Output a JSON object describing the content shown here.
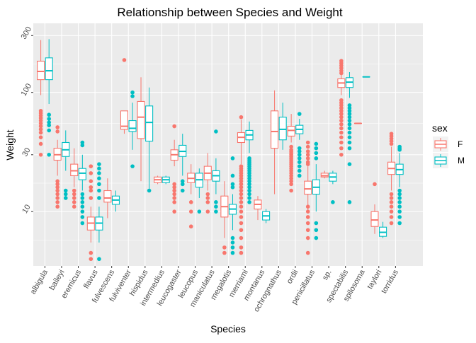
{
  "chart_data": {
    "type": "boxplot",
    "title": "Relationship between Species and Weight",
    "xlabel": "Species",
    "ylabel": "Weight",
    "y_scale": "log10",
    "ylim": [
      3.5,
      380
    ],
    "y_ticks": [
      10,
      30,
      100,
      300
    ],
    "y_tick_labels": [
      "10",
      "30",
      "100",
      "300"
    ],
    "grid": true,
    "legend": {
      "title": "sex",
      "placement": "right",
      "entries": [
        {
          "label": "F",
          "color": "#F8766D"
        },
        {
          "label": "M",
          "color": "#00BFC4"
        }
      ]
    },
    "categories": [
      "albigula",
      "baileyi",
      "eremicus",
      "flavus",
      "fulvescens",
      "fulviventer",
      "hispidus",
      "intermedius",
      "leucogaster",
      "leucopus",
      "maniculatus",
      "megalotis",
      "merriami",
      "montanus",
      "ochrognathus",
      "ordii",
      "penicillatus",
      "sp.",
      "spectabilis",
      "spilosoma",
      "taylori",
      "torridus"
    ],
    "series": [
      {
        "name": "F",
        "color": "#F8766D",
        "boxes": [
          {
            "species": "albigula",
            "min": 95,
            "q1": 128,
            "median": 150,
            "q3": 183,
            "max": 275,
            "outliers": [
              30,
              37,
              42,
              46,
              49,
              52,
              55,
              58,
              61,
              64,
              67,
              70
            ]
          },
          {
            "species": "baileyi",
            "min": 20,
            "q1": 27,
            "median": 30,
            "q3": 34,
            "max": 40,
            "outliers": [
              11,
              12,
              13,
              14,
              15,
              16,
              17,
              18,
              47,
              51
            ]
          },
          {
            "species": "eremicus",
            "min": 16,
            "q1": 20,
            "median": 22,
            "q3": 25,
            "max": 34,
            "outliers": [
              11,
              12,
              13,
              14,
              15
            ]
          },
          {
            "species": "flavus",
            "min": 5.5,
            "q1": 7,
            "median": 8,
            "q3": 9,
            "max": 11,
            "outliers": [
              4,
              4.5,
              13,
              15,
              16,
              18,
              21,
              24
            ]
          },
          {
            "species": "fulvescens",
            "min": 8.8,
            "q1": 12,
            "median": 13,
            "q3": 15,
            "max": 19,
            "outliers": []
          },
          {
            "species": "fulviventer",
            "min": 45,
            "q1": 49,
            "median": 52,
            "q3": 70,
            "max": 70,
            "outliers": [
              187
            ]
          },
          {
            "species": "hispidus",
            "min": 18,
            "q1": 41,
            "median": 62,
            "q3": 84,
            "max": 134,
            "outliers": []
          },
          {
            "species": "intermedius",
            "min": 17,
            "q1": 17.5,
            "median": 18.5,
            "q3": 19.5,
            "max": 20,
            "outliers": []
          },
          {
            "species": "leucogaster",
            "min": 24,
            "q1": 27,
            "median": 30,
            "q3": 33,
            "max": 40,
            "outliers": [
              10,
              12,
              13,
              14,
              15,
              16,
              17,
              52
            ]
          },
          {
            "species": "leucopus",
            "min": 14,
            "q1": 17.5,
            "median": 19,
            "q3": 21,
            "max": 25,
            "outliers": [
              7.5,
              10,
              12
            ]
          },
          {
            "species": "maniculatus",
            "min": 15,
            "q1": 18.5,
            "median": 21,
            "q3": 24,
            "max": 31,
            "outliers": [
              10,
              12,
              13,
              14
            ]
          },
          {
            "species": "megalotis",
            "min": 6,
            "q1": 9,
            "median": 11,
            "q3": 13.5,
            "max": 18,
            "outliers": [
              4.5,
              5
            ]
          },
          {
            "species": "merriami",
            "min": 25,
            "q1": 38,
            "median": 42,
            "q3": 46,
            "max": 59,
            "outliers": [
              4.5,
              5,
              6,
              7,
              8,
              9,
              10,
              11,
              12,
              13,
              14,
              15,
              16,
              17,
              18,
              19,
              20,
              21,
              22,
              23,
              24,
              62
            ]
          },
          {
            "species": "montanus",
            "min": 8.5,
            "q1": 10.5,
            "median": 11.5,
            "q3": 12.5,
            "max": 13.5,
            "outliers": []
          },
          {
            "species": "ochrognathus",
            "min": 14,
            "q1": 34,
            "median": 47,
            "q3": 70,
            "max": 104,
            "outliers": []
          },
          {
            "species": "ordii",
            "min": 38,
            "q1": 43,
            "median": 48,
            "q3": 52,
            "max": 66,
            "outliers": [
              15,
              17,
              18,
              19,
              20,
              21,
              22,
              23,
              24,
              25,
              26,
              27,
              28,
              29,
              30,
              31,
              32,
              33,
              35
            ]
          },
          {
            "species": "penicillatus",
            "min": 10,
            "q1": 14,
            "median": 15.5,
            "q3": 18,
            "max": 24,
            "outliers": [
              4.5,
              6,
              7,
              8,
              9,
              10,
              11,
              25,
              26,
              28,
              30,
              32,
              35,
              38
            ]
          },
          {
            "species": "sp.",
            "min": 19,
            "q1": 19.5,
            "median": 20,
            "q3": 21,
            "max": 22,
            "outliers": []
          },
          {
            "species": "spectabilis",
            "min": 95,
            "q1": 110,
            "median": 120,
            "q3": 130,
            "max": 140,
            "outliers": [
              30,
              34,
              38,
              42,
              46,
              50,
              54,
              58,
              62,
              66,
              70,
              74,
              78,
              82,
              86,
              145,
              152,
              160,
              168,
              176,
              184
            ]
          },
          {
            "species": "spilosoma",
            "min": 55,
            "q1": 55,
            "median": 55,
            "q3": 55,
            "max": 55,
            "outliers": []
          },
          {
            "species": "taylori",
            "min": 6.5,
            "q1": 7.5,
            "median": 8.5,
            "q3": 10,
            "max": 11.5,
            "outliers": [
              17
            ]
          },
          {
            "species": "torridus",
            "min": 15,
            "q1": 20.5,
            "median": 23,
            "q3": 26,
            "max": 35,
            "outliers": [
              8,
              9,
              10,
              11,
              12,
              13,
              14,
              37,
              39,
              41,
              43,
              45
            ]
          }
        ]
      },
      {
        "name": "M",
        "color": "#00BFC4",
        "boxes": [
          {
            "species": "albigula",
            "min": 80,
            "q1": 128,
            "median": 152,
            "q3": 195,
            "max": 280,
            "outliers": [
              30,
              48,
              53,
              56,
              60,
              65
            ]
          },
          {
            "species": "baileyi",
            "min": 22,
            "q1": 29,
            "median": 33,
            "q3": 38,
            "max": 48,
            "outliers": [
              13,
              14,
              15
            ]
          },
          {
            "species": "eremicus",
            "min": 15,
            "q1": 18.5,
            "median": 21,
            "q3": 23,
            "max": 30,
            "outliers": [
              8,
              9,
              10,
              11,
              12,
              13,
              14,
              36,
              38
            ]
          },
          {
            "species": "flavus",
            "min": 5.5,
            "q1": 7,
            "median": 8,
            "q3": 9,
            "max": 11,
            "outliers": [
              4,
              13,
              15,
              17,
              19,
              21,
              23,
              25
            ]
          },
          {
            "species": "fulvescens",
            "min": 10,
            "q1": 11.5,
            "median": 12.5,
            "q3": 13.5,
            "max": 15,
            "outliers": []
          },
          {
            "species": "fulviventer",
            "min": 33,
            "q1": 47,
            "median": 50,
            "q3": 58,
            "max": 82,
            "outliers": [
              24,
              93,
              100
            ]
          },
          {
            "species": "hispidus",
            "min": 15,
            "q1": 39,
            "median": 56,
            "q3": 77,
            "max": 110,
            "outliers": [
              15
            ]
          },
          {
            "species": "intermedius",
            "min": 17,
            "q1": 17.5,
            "median": 18.5,
            "q3": 19.5,
            "max": 20,
            "outliers": []
          },
          {
            "species": "leucogaster",
            "min": 20,
            "q1": 29,
            "median": 32,
            "q3": 36,
            "max": 45,
            "outliers": [
              15,
              17,
              18
            ]
          },
          {
            "species": "leucopus",
            "min": 13,
            "q1": 16,
            "median": 18.5,
            "q3": 21,
            "max": 23,
            "outliers": [
              10
            ]
          },
          {
            "species": "maniculatus",
            "min": 14,
            "q1": 18,
            "median": 20,
            "q3": 22,
            "max": 28,
            "outliers": [
              10,
              11,
              12,
              47
            ]
          },
          {
            "species": "megalotis",
            "min": 7,
            "q1": 9.5,
            "median": 10.5,
            "q3": 11.5,
            "max": 14,
            "outliers": [
              4.5,
              5,
              5.5,
              6,
              16,
              17,
              20,
              28
            ]
          },
          {
            "species": "merriami",
            "min": 31,
            "q1": 40,
            "median": 44,
            "q3": 48,
            "max": 57,
            "outliers": [
              12,
              13,
              14,
              15,
              16,
              17,
              18,
              19,
              20,
              21,
              22,
              23,
              24,
              25,
              26,
              27,
              28
            ]
          },
          {
            "species": "montanus",
            "min": 8,
            "q1": 8.5,
            "median": 9.2,
            "q3": 10,
            "max": 10.5,
            "outliers": []
          },
          {
            "species": "ochrognathus",
            "min": 33,
            "q1": 40,
            "median": 49,
            "q3": 62,
            "max": 82,
            "outliers": []
          },
          {
            "species": "ordii",
            "min": 40,
            "q1": 45,
            "median": 49,
            "q3": 53,
            "max": 60,
            "outliers": [
              20,
              22,
              24,
              26,
              28,
              30,
              32,
              34,
              66
            ]
          },
          {
            "species": "penicillatus",
            "min": 10,
            "q1": 14,
            "median": 16,
            "q3": 18.5,
            "max": 25,
            "outliers": [
              6,
              7,
              8,
              28,
              31,
              34,
              37
            ]
          },
          {
            "species": "sp.",
            "min": 17,
            "q1": 18,
            "median": 19.5,
            "q3": 21,
            "max": 22,
            "outliers": [
              12
            ]
          },
          {
            "species": "spectabilis",
            "min": 90,
            "q1": 110,
            "median": 122,
            "q3": 133,
            "max": 148,
            "outliers": [
              12,
              25,
              34,
              38,
              42,
              46,
              50,
              54,
              58,
              62,
              66,
              70,
              74,
              78
            ]
          },
          {
            "species": "spilosoma",
            "min": 135,
            "q1": 135,
            "median": 135,
            "q3": 135,
            "max": 135,
            "outliers": []
          },
          {
            "species": "taylori",
            "min": 6,
            "q1": 6.2,
            "median": 6.7,
            "q3": 7.4,
            "max": 8.2,
            "outliers": []
          },
          {
            "species": "torridus",
            "min": 16,
            "q1": 20.5,
            "median": 22.5,
            "q3": 25,
            "max": 31,
            "outliers": [
              8,
              9,
              10,
              11,
              12,
              13,
              14,
              15,
              33,
              34,
              35
            ]
          }
        ]
      }
    ]
  }
}
